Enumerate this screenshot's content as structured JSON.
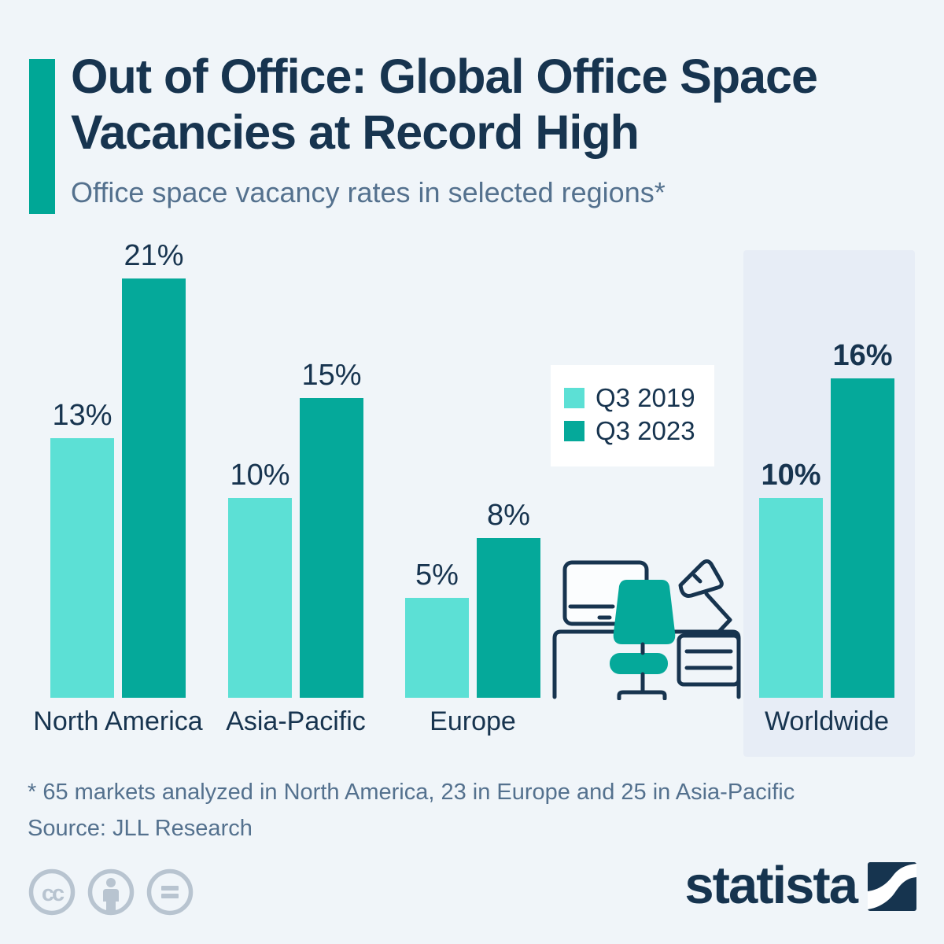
{
  "chart_data": {
    "type": "bar",
    "title": "Out of Office: Global Office Space Vacancies at Record High",
    "subtitle": "Office space vacancy rates in selected regions*",
    "categories": [
      "North America",
      "Asia-Pacific",
      "Europe",
      "Worldwide"
    ],
    "series": [
      {
        "name": "Q3 2019",
        "color": "#5ce0d5",
        "values": [
          13,
          10,
          5,
          10
        ]
      },
      {
        "name": "Q3 2023",
        "color": "#05a99a",
        "values": [
          21,
          15,
          8,
          16
        ]
      }
    ],
    "value_suffix": "%",
    "ylim": [
      0,
      23
    ],
    "grid": false,
    "legend_position": "center-right",
    "highlight_category": "Worldwide",
    "footnote": "* 65 markets analyzed in North America, 23 in Europe and 25 in Asia-Pacific",
    "source": "Source: JLL Research"
  },
  "branding": {
    "logo_text": "statista",
    "license_icons": [
      "cc-icon",
      "attribution-icon",
      "no-derivatives-icon"
    ]
  },
  "colors": {
    "background": "#f0f5f9",
    "accent_bar": "#00a796",
    "title_text": "#17344f",
    "subtitle_text": "#54718e",
    "series_2019": "#5ce0d5",
    "series_2023": "#05a99a",
    "highlight_panel": "#e7edf6",
    "license_icon_gray": "#b8c4d0"
  }
}
